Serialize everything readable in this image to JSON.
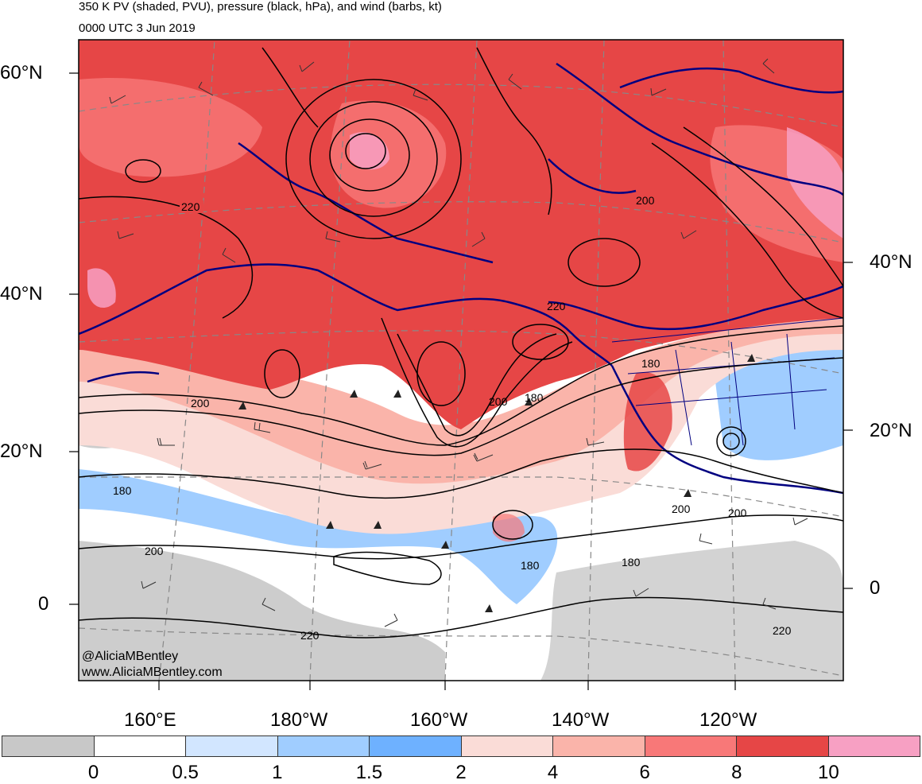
{
  "title": "350 K PV (shaded, PVU), pressure (black, hPa), and wind (barbs, kt)",
  "valid_time": "0000 UTC 3 Jun 2019",
  "credit_handle": "@AliciaMBentley",
  "credit_url": "www.AliciaMBentley.com",
  "lat_labels_left": [
    "60°N",
    "40°N",
    "20°N",
    "0"
  ],
  "lat_labels_right": [
    "40°N",
    "20°N",
    "0"
  ],
  "lon_labels": [
    "160°E",
    "180°W",
    "160°W",
    "140°W",
    "120°W"
  ],
  "contour_labels": [
    "220",
    "200",
    "220",
    "180",
    "200",
    "180",
    "200",
    "180",
    "200",
    "180",
    "200",
    "200",
    "220",
    "220",
    "180"
  ],
  "colorbar": {
    "colors": [
      "#c8c8c8",
      "#ffffff",
      "#d2e6ff",
      "#a0cdff",
      "#6eb1ff",
      "#fadcd7",
      "#fab4aa",
      "#f87878",
      "#e64646",
      "#f7a0c3"
    ],
    "tick_labels": [
      "0",
      "0.5",
      "1",
      "1.5",
      "2",
      "4",
      "6",
      "8",
      "10"
    ]
  },
  "colors": {
    "coastline": "#000080",
    "contour": "#000000",
    "grid": "#888888"
  }
}
